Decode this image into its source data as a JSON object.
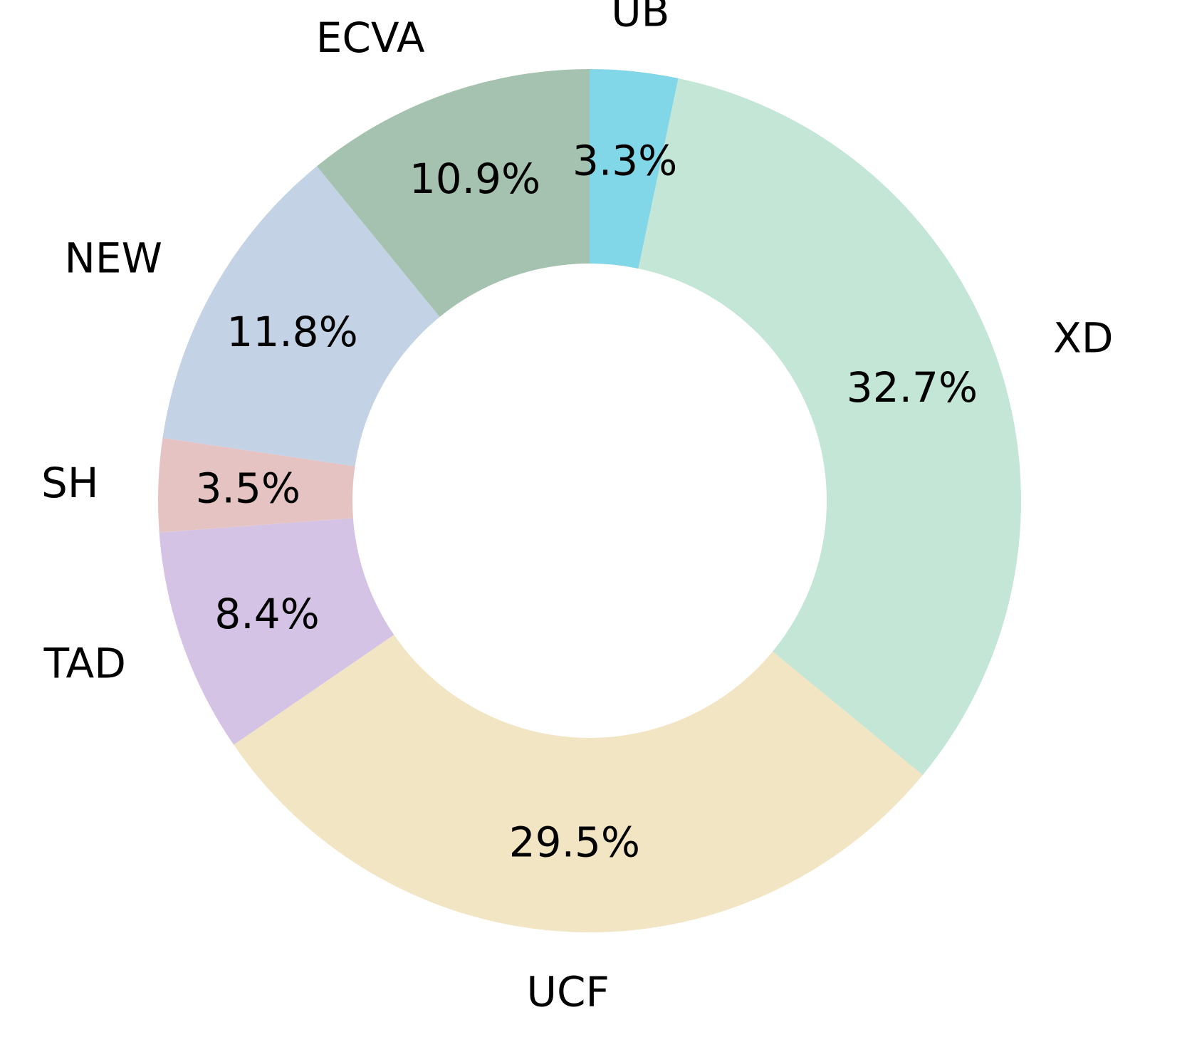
{
  "chart_data": {
    "type": "pie",
    "variant": "donut",
    "start": "top",
    "direction": "clockwise",
    "slices": [
      {
        "label": "UB",
        "value": 3.3,
        "value_label": "3.3%",
        "color": "#81d6e8"
      },
      {
        "label": "XD",
        "value": 32.7,
        "value_label": "32.7%",
        "color": "#c4e6d6"
      },
      {
        "label": "UCF",
        "value": 29.5,
        "value_label": "29.5%",
        "color": "#f2e5c3"
      },
      {
        "label": "TAD",
        "value": 8.4,
        "value_label": "8.4%",
        "color": "#d4c3e5"
      },
      {
        "label": "SH",
        "value": 3.5,
        "value_label": "3.5%",
        "color": "#e5c3c3"
      },
      {
        "label": "NEW",
        "value": 11.8,
        "value_label": "11.8%",
        "color": "#c3d3e5"
      },
      {
        "label": "ECVA",
        "value": 10.9,
        "value_label": "10.9%",
        "color": "#a5c2b0"
      }
    ]
  }
}
